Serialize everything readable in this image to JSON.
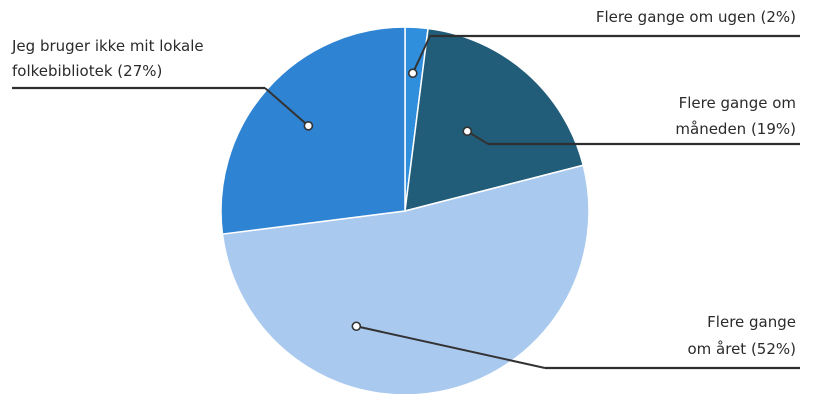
{
  "chart_data": {
    "type": "pie",
    "title": "",
    "start_angle_deg": 0,
    "direction": "clockwise",
    "slices": [
      {
        "label_lines": [
          "Flere gange om ugen (2%)"
        ],
        "value": 2,
        "color": "#2f8fdc"
      },
      {
        "label_lines": [
          "Flere gange om",
          "måneden (19%)"
        ],
        "value": 19,
        "color": "#215d79"
      },
      {
        "label_lines": [
          "Flere gange",
          "om året (52%)"
        ],
        "value": 52,
        "color": "#a9c9ef"
      },
      {
        "label_lines": [
          "Jeg bruger ikke mit lokale",
          "folkebibliotek (27%)"
        ],
        "value": 27,
        "color": "#2f83d3"
      }
    ]
  }
}
